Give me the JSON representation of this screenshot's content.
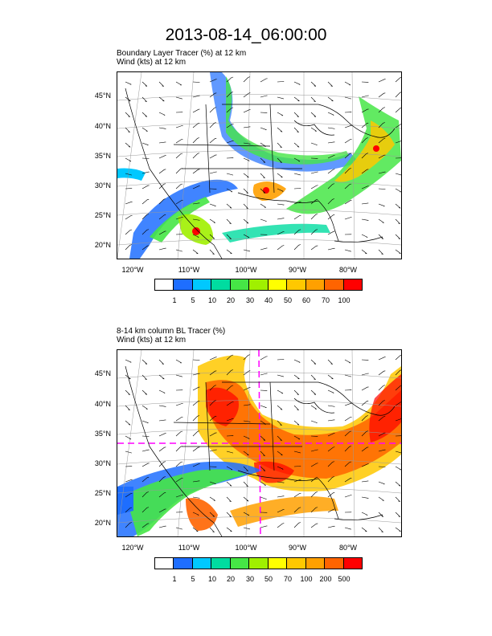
{
  "title": "2013-08-14_06:00:00",
  "panels": [
    {
      "title_line1": "Boundary Layer Tracer   (%)     at   12 km",
      "title_line2": "Wind    (kts)      at   12 km",
      "lat_labels": [
        "45°N",
        "40°N",
        "35°N",
        "30°N",
        "25°N",
        "20°N"
      ],
      "lon_labels": [
        "120°W",
        "110°W",
        "100°W",
        "90°W",
        "80°W"
      ],
      "colorbar_labels": [
        "1",
        "5",
        "10",
        "20",
        "30",
        "40",
        "50",
        "60",
        "70",
        "100"
      ],
      "colorbar_colors": [
        "#ffffff",
        "#1e6eff",
        "#00c8ff",
        "#00dca0",
        "#46e646",
        "#a0f000",
        "#ffff00",
        "#ffc800",
        "#ffa000",
        "#ff6400",
        "#ff0000"
      ]
    },
    {
      "title_line1": "8-14 km column BL Tracer    (%)",
      "title_line2": "Wind    (kts)      at   12 km",
      "lat_labels": [
        "45°N",
        "40°N",
        "35°N",
        "30°N",
        "25°N",
        "20°N"
      ],
      "lon_labels": [
        "120°W",
        "110°W",
        "100°W",
        "90°W",
        "80°W"
      ],
      "colorbar_labels": [
        "1",
        "5",
        "10",
        "20",
        "30",
        "50",
        "70",
        "100",
        "200",
        "500"
      ],
      "colorbar_colors": [
        "#ffffff",
        "#1e6eff",
        "#00c8ff",
        "#00dca0",
        "#46e646",
        "#a0f000",
        "#ffff00",
        "#ffc800",
        "#ffa000",
        "#ff6400",
        "#ff0000"
      ]
    }
  ]
}
